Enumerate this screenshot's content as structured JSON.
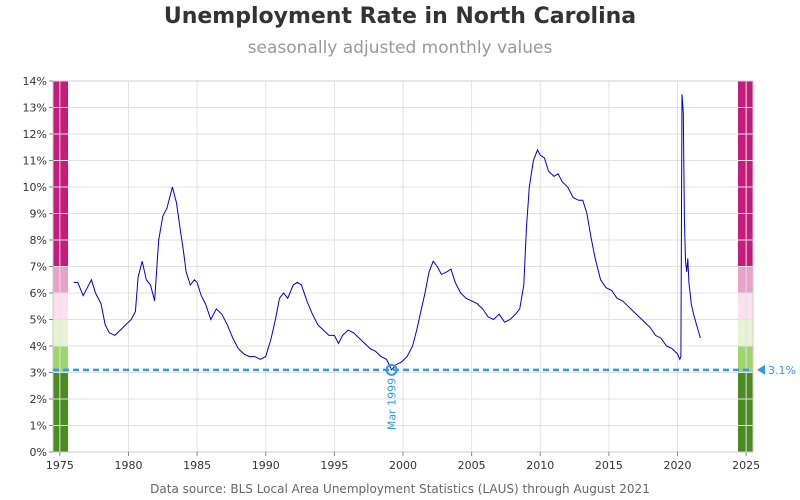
{
  "title": "Unemployment Rate in North Carolina",
  "subtitle": "seasonally adjusted monthly values",
  "source": "Data source: BLS Local Area Unemployment Statistics (LAUS) through August 2021",
  "colors": {
    "line": "#0000cc",
    "reference": "#3399ee",
    "grid": "#e2e2e2",
    "bands": [
      "#4a8c22",
      "#9fd56d",
      "#e6f4d3",
      "#fde0ef",
      "#e8a1c9",
      "#c51b7d"
    ]
  },
  "chart_data": {
    "type": "line",
    "xlabel": "",
    "ylabel": "",
    "xlim": [
      1974.5,
      2025.5
    ],
    "ylim": [
      0,
      14
    ],
    "x_ticks": [
      1975,
      1980,
      1985,
      1990,
      1995,
      2000,
      2005,
      2010,
      2015,
      2020,
      2025
    ],
    "x_tick_labels": [
      "1975",
      "1980",
      "1985",
      "1990",
      "1995",
      "2000",
      "2005",
      "2010",
      "2015",
      "2020",
      "2025"
    ],
    "y_ticks": [
      0,
      1,
      2,
      3,
      4,
      5,
      6,
      7,
      8,
      9,
      10,
      11,
      12,
      13,
      14
    ],
    "y_tick_labels": [
      "0%",
      "1%",
      "2%",
      "3%",
      "4%",
      "5%",
      "6%",
      "7%",
      "8%",
      "9%",
      "10%",
      "11%",
      "12%",
      "13%",
      "14%"
    ],
    "grid": true,
    "color_bands": [
      {
        "from": 0,
        "to": 3
      },
      {
        "from": 3,
        "to": 4
      },
      {
        "from": 4,
        "to": 5
      },
      {
        "from": 5,
        "to": 6
      },
      {
        "from": 6,
        "to": 7
      },
      {
        "from": 7,
        "to": 14
      }
    ],
    "reference_line": {
      "value": 3.1,
      "label": "3.1%"
    },
    "minimum_point": {
      "x": 1999.17,
      "y": 3.1,
      "label": "Mar 1999"
    },
    "series": [
      {
        "x": [
          1976.0,
          1976.3,
          1976.7,
          1977.0,
          1977.3,
          1977.6,
          1978.0,
          1978.3,
          1978.6,
          1979.0,
          1979.4,
          1979.8,
          1980.2,
          1980.5,
          1980.7,
          1981.0,
          1981.3,
          1981.6,
          1981.9,
          1982.2,
          1982.5,
          1982.8,
          1983.0,
          1983.2,
          1983.5,
          1983.8,
          1984.0,
          1984.2,
          1984.5,
          1984.8,
          1985.0,
          1985.3,
          1985.6,
          1986.0,
          1986.4,
          1986.8,
          1987.2,
          1987.6,
          1988.0,
          1988.4,
          1988.8,
          1989.2,
          1989.6,
          1990.0,
          1990.4,
          1990.7,
          1991.0,
          1991.3,
          1991.6,
          1992.0,
          1992.3,
          1992.6,
          1993.0,
          1993.4,
          1993.8,
          1994.2,
          1994.6,
          1995.0,
          1995.3,
          1995.6,
          1996.0,
          1996.4,
          1996.8,
          1997.2,
          1997.6,
          1998.0,
          1998.4,
          1998.8,
          1999.17,
          1999.5,
          1999.9,
          2000.3,
          2000.7,
          2001.0,
          2001.3,
          2001.6,
          2001.9,
          2002.2,
          2002.5,
          2002.8,
          2003.2,
          2003.5,
          2003.8,
          2004.2,
          2004.6,
          2005.0,
          2005.4,
          2005.8,
          2006.2,
          2006.6,
          2007.0,
          2007.4,
          2007.8,
          2008.2,
          2008.5,
          2008.8,
          2009.0,
          2009.2,
          2009.5,
          2009.8,
          2010.0,
          2010.3,
          2010.6,
          2011.0,
          2011.3,
          2011.6,
          2012.0,
          2012.4,
          2012.8,
          2013.1,
          2013.4,
          2013.7,
          2014.0,
          2014.4,
          2014.8,
          2015.2,
          2015.6,
          2016.0,
          2016.4,
          2016.8,
          2017.2,
          2017.6,
          2018.0,
          2018.4,
          2018.8,
          2019.2,
          2019.6,
          2020.0,
          2020.17,
          2020.25,
          2020.33,
          2020.42,
          2020.5,
          2020.58,
          2020.67,
          2020.75,
          2020.83,
          2020.92,
          2021.0,
          2021.17,
          2021.33,
          2021.5,
          2021.67
        ],
        "y": [
          6.4,
          6.4,
          5.9,
          6.2,
          6.5,
          6.0,
          5.6,
          4.8,
          4.5,
          4.4,
          4.6,
          4.8,
          5.0,
          5.3,
          6.6,
          7.2,
          6.5,
          6.3,
          5.7,
          8.0,
          8.9,
          9.2,
          9.6,
          10.0,
          9.4,
          8.3,
          7.6,
          6.8,
          6.3,
          6.5,
          6.4,
          5.9,
          5.6,
          5.0,
          5.4,
          5.2,
          4.8,
          4.3,
          3.9,
          3.7,
          3.6,
          3.6,
          3.5,
          3.6,
          4.3,
          5.0,
          5.8,
          6.0,
          5.8,
          6.3,
          6.4,
          6.3,
          5.7,
          5.2,
          4.8,
          4.6,
          4.4,
          4.4,
          4.1,
          4.4,
          4.6,
          4.5,
          4.3,
          4.1,
          3.9,
          3.8,
          3.6,
          3.5,
          3.1,
          3.3,
          3.4,
          3.6,
          4.0,
          4.6,
          5.3,
          6.0,
          6.8,
          7.2,
          7.0,
          6.7,
          6.8,
          6.9,
          6.4,
          6.0,
          5.8,
          5.7,
          5.6,
          5.4,
          5.1,
          5.0,
          5.2,
          4.9,
          5.0,
          5.2,
          5.4,
          6.3,
          8.5,
          10.0,
          11.0,
          11.4,
          11.2,
          11.1,
          10.6,
          10.4,
          10.5,
          10.2,
          10.0,
          9.6,
          9.5,
          9.5,
          9.0,
          8.1,
          7.3,
          6.5,
          6.2,
          6.1,
          5.8,
          5.7,
          5.5,
          5.3,
          5.1,
          4.9,
          4.7,
          4.4,
          4.3,
          4.0,
          3.9,
          3.7,
          3.5,
          3.6,
          13.5,
          12.8,
          8.8,
          7.2,
          6.8,
          7.3,
          6.4,
          6.0,
          5.6,
          5.2,
          4.9,
          4.6,
          4.3
        ]
      }
    ]
  }
}
